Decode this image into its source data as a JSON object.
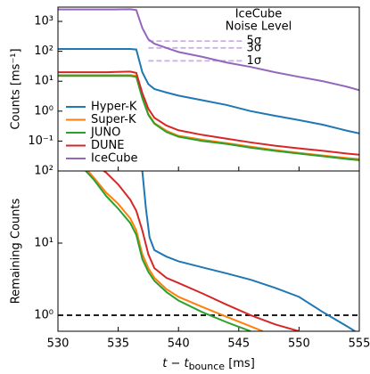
{
  "chart_data": [
    {
      "type": "line",
      "ylabel": "Counts [ms⁻¹]",
      "yscale": "log",
      "xlim": [
        530,
        555
      ],
      "ylim": [
        0.01,
        3000
      ],
      "xticks": [
        530,
        535,
        540,
        545,
        550,
        555
      ],
      "xticklabels": false,
      "yticks": [
        {
          "value": 0.1,
          "label": "10⁻¹"
        },
        {
          "value": 1,
          "label": "10⁰"
        },
        {
          "value": 10,
          "label": "10¹"
        },
        {
          "value": 100,
          "label": "10²"
        },
        {
          "value": 1000,
          "label": "10³"
        }
      ],
      "legend": "lower left",
      "annotation": [
        "IceCube",
        "Noise Level"
      ],
      "noise_levels": {
        "color": "#c9b3e3",
        "xrange": [
          537.5,
          545.5
        ],
        "levels": [
          {
            "label": "5σ",
            "value": 220
          },
          {
            "label": "3σ",
            "value": 130
          },
          {
            "label": "1σ",
            "value": 48
          }
        ]
      },
      "x": [
        530,
        532,
        534,
        536,
        536.5,
        537,
        537.5,
        538,
        539,
        540,
        542,
        544,
        546,
        548,
        550,
        552,
        554,
        555
      ],
      "series": [
        {
          "name": "Hyper-K",
          "color": "#1f77b4",
          "values": [
            120,
            120,
            120,
            120,
            115,
            20,
            8,
            5.5,
            4.2,
            3.3,
            2.3,
            1.6,
            1.0,
            0.7,
            0.5,
            0.35,
            0.22,
            0.18
          ]
        },
        {
          "name": "Super-K",
          "color": "#ff7f0e",
          "values": [
            16,
            16,
            16,
            16,
            15,
            3,
            0.8,
            0.4,
            0.22,
            0.15,
            0.11,
            0.085,
            0.065,
            0.05,
            0.04,
            0.033,
            0.027,
            0.025
          ]
        },
        {
          "name": "JUNO",
          "color": "#2ca02c",
          "values": [
            15,
            15,
            15,
            15,
            14,
            2.7,
            0.75,
            0.38,
            0.2,
            0.14,
            0.1,
            0.08,
            0.06,
            0.047,
            0.038,
            0.031,
            0.025,
            0.023
          ]
        },
        {
          "name": "DUNE",
          "color": "#d62728",
          "values": [
            20,
            20,
            20,
            21,
            19,
            4,
            1.2,
            0.6,
            0.33,
            0.23,
            0.16,
            0.12,
            0.09,
            0.07,
            0.057,
            0.047,
            0.038,
            0.035
          ]
        },
        {
          "name": "IceCube",
          "color": "#9467bd",
          "values": [
            2500,
            2500,
            2500,
            2550,
            2400,
            600,
            250,
            180,
            130,
            95,
            65,
            42,
            30,
            20,
            14,
            10,
            6.5,
            5
          ]
        }
      ]
    },
    {
      "type": "line",
      "ylabel": "Remaining Counts",
      "xlabel_parts": [
        "t − t",
        "bounce",
        " [ms]"
      ],
      "yscale": "log",
      "xlim": [
        530,
        555
      ],
      "ylim": [
        0.6,
        100
      ],
      "xticks": [
        530,
        535,
        540,
        545,
        550,
        555
      ],
      "xticklabels": true,
      "yticks": [
        {
          "value": 1,
          "label": "10⁰"
        },
        {
          "value": 10,
          "label": "10¹"
        },
        {
          "value": 100,
          "label": "10²"
        }
      ],
      "hline": {
        "value": 1,
        "color": "#000000"
      },
      "series": [
        {
          "name": "Hyper-K",
          "color": "#1f77b4",
          "x": [
            537,
            537.3,
            537.6,
            538,
            539,
            540,
            542,
            544,
            546,
            548,
            550,
            552,
            554,
            555
          ],
          "values": [
            100,
            30,
            12,
            8,
            6.5,
            5.6,
            4.6,
            3.8,
            3.1,
            2.4,
            1.8,
            1.1,
            0.7,
            0.55
          ]
        },
        {
          "name": "Super-K",
          "color": "#ff7f0e",
          "x": [
            532.5,
            533,
            534,
            535,
            536,
            536.5,
            537,
            537.5,
            538,
            539,
            540,
            542,
            544,
            546,
            547
          ],
          "values": [
            100,
            80,
            50,
            35,
            22,
            15,
            7,
            4.5,
            3.3,
            2.3,
            1.8,
            1.3,
            0.95,
            0.7,
            0.6
          ]
        },
        {
          "name": "JUNO",
          "color": "#2ca02c",
          "x": [
            532.3,
            533,
            534,
            535,
            536,
            536.5,
            537,
            537.5,
            538,
            539,
            540,
            542,
            544,
            546
          ],
          "values": [
            100,
            75,
            45,
            30,
            19,
            13,
            6,
            4,
            3,
            2.1,
            1.6,
            1.1,
            0.8,
            0.6
          ]
        },
        {
          "name": "DUNE",
          "color": "#d62728",
          "x": [
            533.8,
            534,
            535,
            536,
            536.5,
            537,
            537.5,
            538,
            539,
            540,
            542,
            544,
            546,
            548,
            550
          ],
          "values": [
            100,
            95,
            65,
            40,
            28,
            15,
            7,
            4.5,
            3.3,
            2.8,
            2,
            1.4,
            1,
            0.75,
            0.6
          ]
        }
      ]
    }
  ]
}
